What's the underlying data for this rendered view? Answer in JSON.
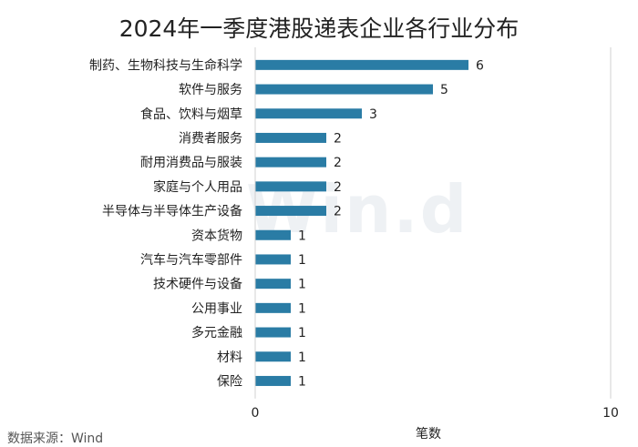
{
  "chart_data": {
    "type": "bar",
    "orientation": "horizontal",
    "title": "2024年一季度港股递表企业各行业分布",
    "categories": [
      "制药、生物科技与生命科学",
      "软件与服务",
      "食品、饮料与烟草",
      "消费者服务",
      "耐用消费品与服装",
      "家庭与个人用品",
      "半导体与半导体生产设备",
      "资本货物",
      "汽车与汽车零部件",
      "技术硬件与设备",
      "公用事业",
      "多元金融",
      "材料",
      "保险"
    ],
    "values": [
      6,
      5,
      3,
      2,
      2,
      2,
      2,
      1,
      1,
      1,
      1,
      1,
      1,
      1
    ],
    "xlabel": "笔数",
    "xlim": [
      0,
      10
    ],
    "xticks": [
      "0",
      "10"
    ],
    "grid": false,
    "bar_color": "#2a7ca5"
  },
  "watermark": "Win.d",
  "source": "数据来源：Wind"
}
